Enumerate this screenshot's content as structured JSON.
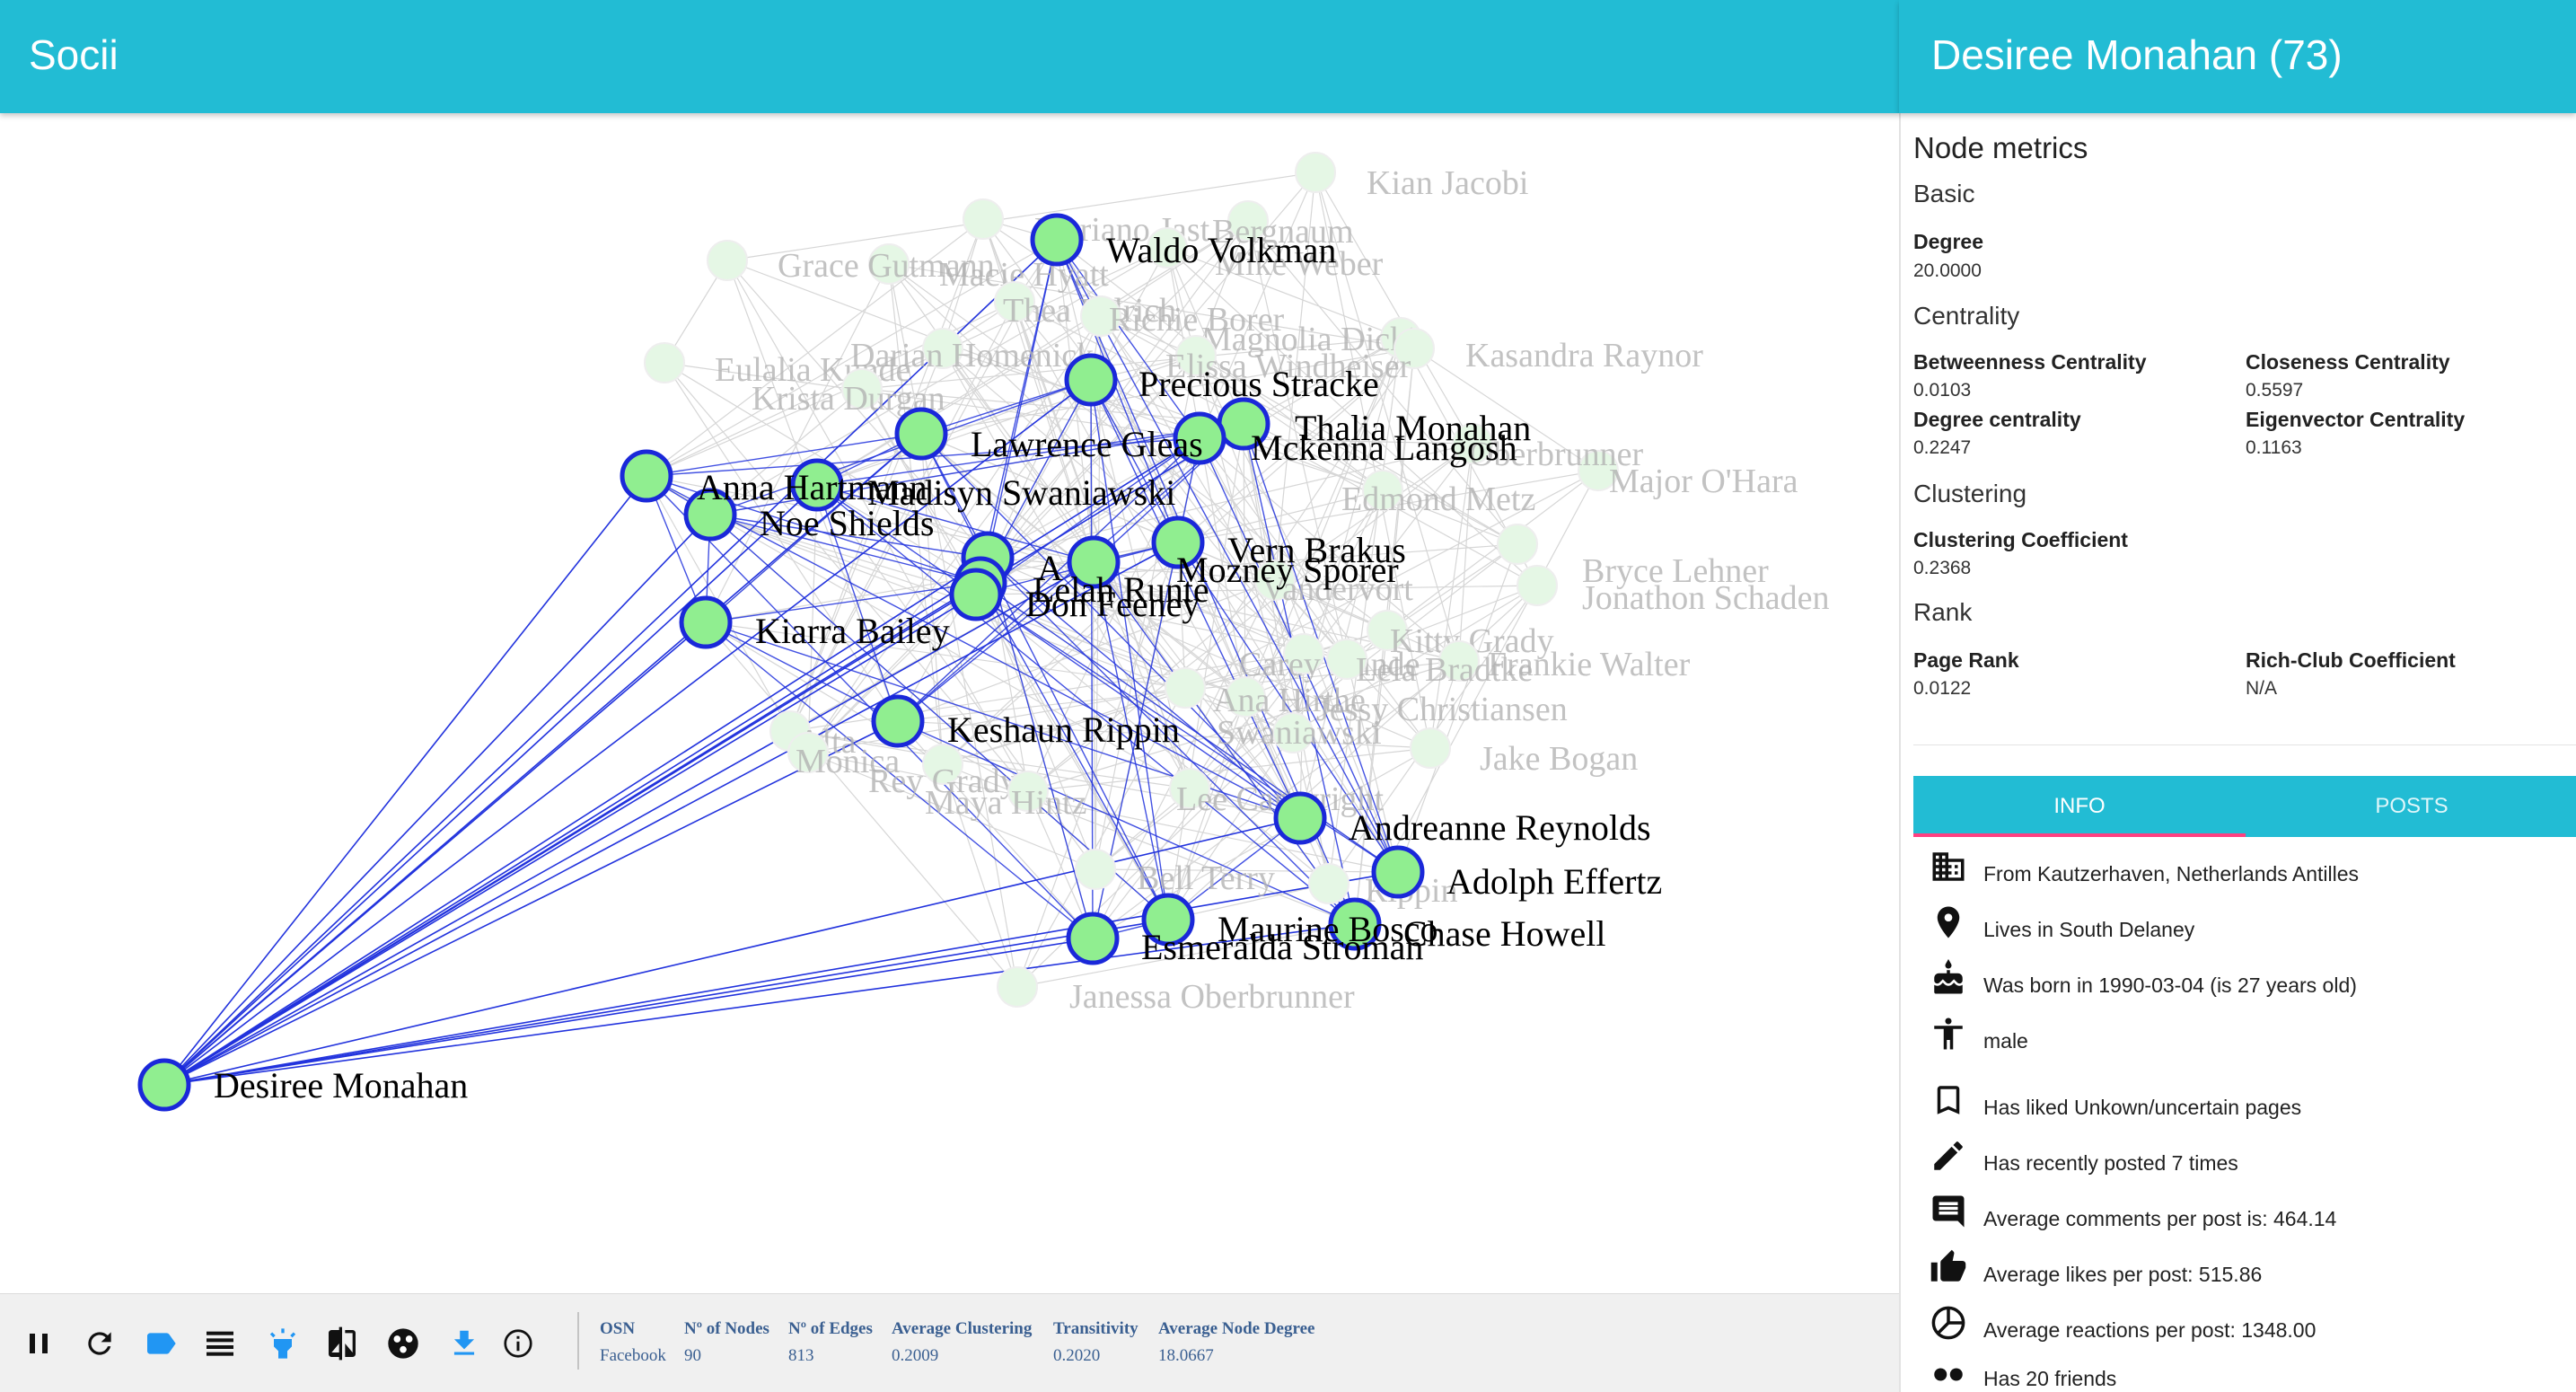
{
  "app": {
    "title": "Socii"
  },
  "panel": {
    "title": "Desiree Monahan (73)",
    "metrics_heading": "Node metrics",
    "basic": {
      "heading": "Basic",
      "degree_label": "Degree",
      "degree_value": "20.0000"
    },
    "centrality": {
      "heading": "Centrality",
      "betweenness_label": "Betweenness Centrality",
      "betweenness_value": "0.0103",
      "closeness_label": "Closeness Centrality",
      "closeness_value": "0.5597",
      "degree_label": "Degree centrality",
      "degree_value": "0.2247",
      "eigenvector_label": "Eigenvector Centrality",
      "eigenvector_value": "0.1163"
    },
    "clustering": {
      "heading": "Clustering",
      "coef_label": "Clustering Coefficient",
      "coef_value": "0.2368"
    },
    "rank": {
      "heading": "Rank",
      "pagerank_label": "Page Rank",
      "pagerank_value": "0.0122",
      "richclub_label": "Rich-Club Coefficient",
      "richclub_value": "N/A"
    },
    "tabs": [
      {
        "label": "INFO"
      },
      {
        "label": "POSTS"
      }
    ],
    "info": [
      {
        "icon": "building-icon",
        "text": "From Kautzerhaven, Netherlands Antilles"
      },
      {
        "icon": "location-pin-icon",
        "text": "Lives in South Delaney"
      },
      {
        "icon": "cake-icon",
        "text": "Was born in 1990-03-04 (is 27 years old)"
      },
      {
        "icon": "person-icon",
        "text": "male"
      },
      {
        "icon": "bookmark-icon",
        "text": "Has liked Unkown/uncertain pages"
      },
      {
        "icon": "pencil-icon",
        "text": "Has recently posted 7 times"
      },
      {
        "icon": "comment-icon",
        "text": "Average comments per post is: 464.14"
      },
      {
        "icon": "thumbs-up-icon",
        "text": "Average likes per post: 515.86"
      },
      {
        "icon": "pie-icon",
        "text": "Average reactions per post: 1348.00"
      },
      {
        "icon": "friends-icon",
        "text": "Has 20 friends"
      }
    ]
  },
  "stats": {
    "osn_label": "OSN",
    "osn_value": "Facebook",
    "nodes_label": "Nº of Nodes",
    "nodes_value": "90",
    "edges_label": "Nº of Edges",
    "edges_value": "813",
    "clustering_label": "Average Clustering",
    "clustering_value": "0.2009",
    "transitivity_label": "Transitivity",
    "transitivity_value": "0.2020",
    "avgdeg_label": "Average Node Degree",
    "avgdeg_value": "18.0667"
  },
  "toolbar": [
    "pause-icon",
    "refresh-icon",
    "label-icon",
    "list-icon",
    "highlight-icon",
    "compare-icon",
    "community-icon",
    "download-icon",
    "info-icon"
  ],
  "colors": {
    "accent": "#22bcd4",
    "node_fill": "#90ee90",
    "node_stroke": "#1a28d9",
    "edge": "#2233dd",
    "faded": "#b3b3b3",
    "tab_indicator": "#ff4081"
  },
  "graph": {
    "selected": "Desiree Monahan",
    "neighbors": [
      "Waldo Volkman",
      "Precious Stracke",
      "Thalia Monahan",
      "Lawrence Gleas",
      "Mckenna Langosh",
      "Anna Hartmann",
      "Madisyn Swaniawski",
      "Noe Shields",
      "Vern Brakus",
      "A",
      "Lelah Runte",
      "Mozney Sporer",
      "Don Feeney",
      "Kiarra Bailey",
      "Keshaun Rippin",
      "Andreanne Reynolds",
      "Adolph Effertz",
      "Maurine Bosco",
      "Chase Howell",
      "Esmeralda Stroman"
    ],
    "faded": [
      "Kian Jacobi",
      "Mariano Jast",
      "Bergnaum",
      "Mike Weber",
      "Macie Hyatt",
      "Grace Gutmann",
      "Thea Ullrich",
      "Richie Borer",
      "Magnolia Dicki",
      "Kasandra Raynor",
      "Eulalia Kunde",
      "Darian Homenick",
      "Elissa Windheiser",
      "Krista Durgan",
      "Major O'Hara",
      "Oberbrunner",
      "Edmond Metz",
      "Bryce Lehner",
      "Jonathon Schaden",
      "Kitty Grady",
      "Frankie Walter",
      "Carey Kunde",
      "Lela Bradtke",
      "Jessy Christiansen",
      "Ana Hirthe",
      "Jake Bogan",
      "Alta",
      "Monica",
      "Swaniawski",
      "Rey Grady",
      "Maya Hintz",
      "Lee Cartwright",
      "Bell Terry",
      "Rippin",
      "Janessa Oberbrunner",
      "Vandervort"
    ]
  }
}
